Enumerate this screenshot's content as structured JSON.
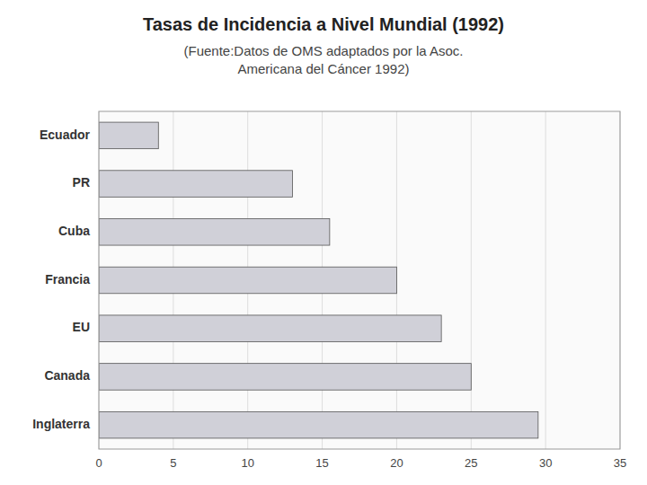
{
  "chart_data": {
    "type": "bar",
    "orientation": "horizontal",
    "title": "Tasas de Incidencia a Nivel Mundial (1992)",
    "subtitle": [
      "(Fuente:Datos de OMS adaptados por la Asoc.",
      "Americana del Cáncer 1992)"
    ],
    "categories": [
      "Ecuador",
      "PR",
      "Cuba",
      "Francia",
      "EU",
      "Canada",
      "Inglaterra"
    ],
    "values": [
      4.0,
      13.0,
      15.5,
      20.0,
      23.0,
      25.0,
      29.5
    ],
    "color": "#d0d0d8",
    "xlim": [
      0,
      35
    ],
    "xticks": [
      0,
      5,
      10,
      15,
      20,
      25,
      30,
      35
    ],
    "grid": true
  }
}
